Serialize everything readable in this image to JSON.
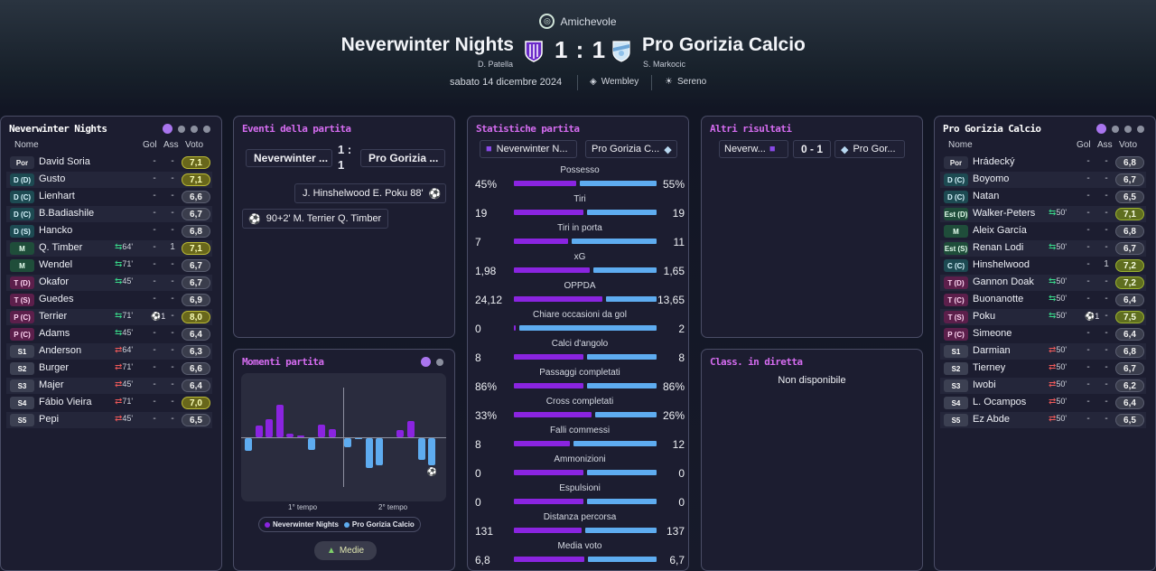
{
  "header": {
    "competition": "Amichevole",
    "home_team": "Neverwinter Nights",
    "home_manager": "D. Patella",
    "away_team": "Pro Gorizia Calcio",
    "away_manager": "S. Markocic",
    "score": "1 : 1",
    "date": "sabato 14 dicembre 2024",
    "stadium": "Wembley",
    "weather": "Sereno"
  },
  "home_panel": {
    "title": "Neverwinter Nights",
    "cols": {
      "name": "Nome",
      "goals": "Gol",
      "assists": "Ass",
      "rating": "Voto"
    },
    "players": [
      {
        "pos": "Por",
        "name": "David Soria",
        "g": "-",
        "a": "-",
        "r": "7,1",
        "rc": "y",
        "k": "gk"
      },
      {
        "pos": "D (D)",
        "name": "Gusto",
        "g": "-",
        "a": "-",
        "r": "7,1",
        "rc": "y",
        "k": "def"
      },
      {
        "pos": "D (C)",
        "name": "Lienhart",
        "g": "-",
        "a": "-",
        "r": "6,6",
        "rc": "",
        "k": "def"
      },
      {
        "pos": "D (C)",
        "name": "B.Badiashile",
        "g": "-",
        "a": "-",
        "r": "6,7",
        "rc": "",
        "k": "def"
      },
      {
        "pos": "D (S)",
        "name": "Hancko",
        "g": "-",
        "a": "-",
        "r": "6,8",
        "rc": "",
        "k": "def"
      },
      {
        "pos": "M",
        "name": "Q. Timber",
        "sub": "64'",
        "so": "in",
        "g": "-",
        "a": "1",
        "r": "7,1",
        "rc": "y",
        "k": "mid"
      },
      {
        "pos": "M",
        "name": "Wendel",
        "sub": "71'",
        "so": "in",
        "g": "-",
        "a": "-",
        "r": "6,7",
        "rc": "",
        "k": "mid"
      },
      {
        "pos": "T (D)",
        "name": "Okafor",
        "sub": "45'",
        "so": "in",
        "g": "-",
        "a": "-",
        "r": "6,7",
        "rc": "",
        "k": "att"
      },
      {
        "pos": "T (S)",
        "name": "Guedes",
        "g": "-",
        "a": "-",
        "r": "6,9",
        "rc": "",
        "k": "att"
      },
      {
        "pos": "P (C)",
        "name": "Terrier",
        "sub": "71'",
        "so": "in",
        "ev": "⚽1",
        "g": "",
        "a": "-",
        "r": "8,0",
        "rc": "y",
        "k": "att"
      },
      {
        "pos": "P (C)",
        "name": "Adams",
        "sub": "45'",
        "so": "in",
        "g": "-",
        "a": "-",
        "r": "6,4",
        "rc": "",
        "k": "att"
      },
      {
        "pos": "S1",
        "name": "Anderson",
        "sub": "64'",
        "so": "out",
        "g": "-",
        "a": "-",
        "r": "6,3",
        "rc": "",
        "k": "sub"
      },
      {
        "pos": "S2",
        "name": "Burger",
        "sub": "71'",
        "so": "out",
        "g": "-",
        "a": "-",
        "r": "6,6",
        "rc": "",
        "k": "sub"
      },
      {
        "pos": "S3",
        "name": "Majer",
        "sub": "45'",
        "so": "out",
        "g": "-",
        "a": "-",
        "r": "6,4",
        "rc": "",
        "k": "sub"
      },
      {
        "pos": "S4",
        "name": "Fábio Vieira",
        "sub": "71'",
        "so": "out",
        "g": "-",
        "a": "-",
        "r": "7,0",
        "rc": "y",
        "k": "sub"
      },
      {
        "pos": "S5",
        "name": "Pepi",
        "sub": "45'",
        "so": "out",
        "g": "-",
        "a": "-",
        "r": "6,5",
        "rc": "",
        "k": "sub"
      }
    ]
  },
  "away_panel": {
    "title": "Pro Gorizia Calcio",
    "cols": {
      "name": "Nome",
      "goals": "Gol",
      "assists": "Ass",
      "rating": "Voto"
    },
    "players": [
      {
        "pos": "Por",
        "name": "Hrádecký",
        "g": "-",
        "a": "-",
        "r": "6,8",
        "rc": "",
        "k": "gk"
      },
      {
        "pos": "D (C)",
        "name": "Boyomo",
        "g": "-",
        "a": "-",
        "r": "6,7",
        "rc": "",
        "k": "def"
      },
      {
        "pos": "D (C)",
        "name": "Natan",
        "g": "-",
        "a": "-",
        "r": "6,5",
        "rc": "",
        "k": "def"
      },
      {
        "pos": "Est (D)",
        "name": "Walker-Peters",
        "sub": "50'",
        "so": "in",
        "g": "-",
        "a": "-",
        "r": "7,1",
        "rc": "g",
        "k": "mid"
      },
      {
        "pos": "M",
        "name": "Aleix García",
        "g": "-",
        "a": "-",
        "r": "6,8",
        "rc": "",
        "k": "mid"
      },
      {
        "pos": "Est (S)",
        "name": "Renan Lodi",
        "sub": "50'",
        "so": "in",
        "g": "-",
        "a": "-",
        "r": "6,7",
        "rc": "",
        "k": "mid"
      },
      {
        "pos": "C (C)",
        "name": "Hinshelwood",
        "g": "-",
        "a": "1",
        "r": "7,2",
        "rc": "g",
        "k": "def"
      },
      {
        "pos": "T (D)",
        "name": "Gannon Doak",
        "sub": "50'",
        "so": "in",
        "g": "-",
        "a": "-",
        "r": "7,2",
        "rc": "g",
        "k": "att"
      },
      {
        "pos": "T (C)",
        "name": "Buonanotte",
        "sub": "50'",
        "so": "in",
        "g": "-",
        "a": "-",
        "r": "6,4",
        "rc": "",
        "k": "att"
      },
      {
        "pos": "T (S)",
        "name": "Poku",
        "sub": "50'",
        "so": "in",
        "ev": "⚽1",
        "g": "",
        "a": "-",
        "r": "7,5",
        "rc": "g",
        "k": "att"
      },
      {
        "pos": "P (C)",
        "name": "Simeone",
        "g": "-",
        "a": "-",
        "r": "6,4",
        "rc": "",
        "k": "att"
      },
      {
        "pos": "S1",
        "name": "Darmian",
        "sub": "50'",
        "so": "out",
        "g": "-",
        "a": "-",
        "r": "6,8",
        "rc": "",
        "k": "sub"
      },
      {
        "pos": "S2",
        "name": "Tierney",
        "sub": "50'",
        "so": "out",
        "g": "-",
        "a": "-",
        "r": "6,7",
        "rc": "",
        "k": "sub"
      },
      {
        "pos": "S3",
        "name": "Iwobi",
        "sub": "50'",
        "so": "out",
        "g": "-",
        "a": "-",
        "r": "6,2",
        "rc": "",
        "k": "sub"
      },
      {
        "pos": "S4",
        "name": "L. Ocampos",
        "sub": "50'",
        "so": "out",
        "g": "-",
        "a": "-",
        "r": "6,4",
        "rc": "",
        "k": "sub"
      },
      {
        "pos": "S5",
        "name": "Ez Abde",
        "sub": "50'",
        "so": "out",
        "g": "-",
        "a": "-",
        "r": "6,5",
        "rc": "",
        "k": "sub"
      }
    ]
  },
  "events": {
    "title": "Eventi della partita",
    "home": "Neverwinter ...",
    "score": "1 : 1",
    "away": "Pro Gorizia ...",
    "list": [
      {
        "text": "J. Hinshelwood  E. Poku  88'"
      },
      {
        "text": "90+2'  M. Terrier  Q. Timber"
      }
    ]
  },
  "momentum": {
    "title": "Momenti partita",
    "half1": "1° tempo",
    "half2": "2° tempo",
    "legend_home": "Neverwinter Nights",
    "legend_away": "Pro Gorizia Calcio",
    "button": "Medie",
    "home_values": [
      0,
      0.28,
      0.42,
      0.75,
      0.08,
      0.04,
      0,
      0.3,
      0.18,
      0,
      0,
      0,
      0,
      0,
      0.16,
      0.38,
      0,
      0
    ],
    "away_values": [
      0.3,
      0,
      0,
      0,
      0,
      0,
      0.28,
      0,
      0,
      0.2,
      0.03,
      0.68,
      0.62,
      0,
      0,
      0,
      0.5,
      0.62
    ]
  },
  "stats": {
    "title": "Statistiche partita",
    "home": "Neverwinter N...",
    "away": "Pro Gorizia C...",
    "rows": [
      {
        "label": "Possesso",
        "h": "45%",
        "a": "55%",
        "hv": 45,
        "av": 55
      },
      {
        "label": "Tiri",
        "h": "19",
        "a": "19",
        "hv": 19,
        "av": 19
      },
      {
        "label": "Tiri in porta",
        "h": "7",
        "a": "11",
        "hv": 7,
        "av": 11
      },
      {
        "label": "xG",
        "h": "1,98",
        "a": "1,65",
        "hv": 1.98,
        "av": 1.65
      },
      {
        "label": "OPPDA",
        "h": "24,12",
        "a": "13,65",
        "hv": 24.12,
        "av": 13.65
      },
      {
        "label": "Chiare occasioni da gol",
        "h": "0",
        "a": "2",
        "hv": 0,
        "av": 2
      },
      {
        "label": "Calci d'angolo",
        "h": "8",
        "a": "8",
        "hv": 8,
        "av": 8
      },
      {
        "label": "Passaggi completati",
        "h": "86%",
        "a": "86%",
        "hv": 86,
        "av": 86
      },
      {
        "label": "Cross completati",
        "h": "33%",
        "a": "26%",
        "hv": 33,
        "av": 26
      },
      {
        "label": "Falli commessi",
        "h": "8",
        "a": "12",
        "hv": 8,
        "av": 12
      },
      {
        "label": "Ammonizioni",
        "h": "0",
        "a": "0",
        "hv": 0,
        "av": 0
      },
      {
        "label": "Espulsioni",
        "h": "0",
        "a": "0",
        "hv": 0,
        "av": 0
      },
      {
        "label": "Distanza percorsa",
        "h": "131",
        "a": "137",
        "hv": 131,
        "av": 137
      },
      {
        "label": "Media voto",
        "h": "6,8",
        "a": "6,7",
        "hv": 6.8,
        "av": 6.7
      }
    ]
  },
  "other": {
    "title": "Altri risultati",
    "home": "Neverw...",
    "score": "0 - 1",
    "away": "Pro Gor..."
  },
  "live": {
    "title": "Class. in diretta",
    "text": "Non disponibile"
  },
  "colors": {
    "home": "#8a24e0",
    "away": "#5eacf0",
    "accent": "#d56cf0"
  },
  "icons": {
    "competition": "friendly-icon",
    "stadium": "stadium-icon",
    "weather": "sun-icon",
    "goal": "ball-icon",
    "sub": "substitution-icon"
  }
}
